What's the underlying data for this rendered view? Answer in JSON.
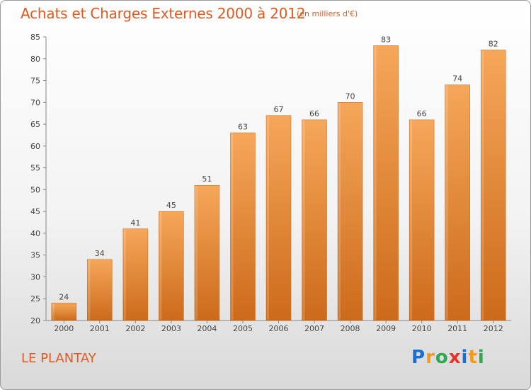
{
  "header": {
    "title": "Achats et Charges Externes 2000 à 2012",
    "subtitle": "(en milliers d'€)"
  },
  "footer": {
    "place": "LE PLANTAY",
    "brand": {
      "letters": [
        "P",
        "r",
        "o",
        "x",
        "i",
        "t",
        "i"
      ],
      "colors": [
        "#1a6fd1",
        "#f29a1d",
        "#2fa84f",
        "#e8332a",
        "#1a6fd1",
        "#f29a1d",
        "#2fa84f"
      ]
    }
  },
  "chart_data": {
    "type": "bar",
    "categories": [
      "2000",
      "2001",
      "2002",
      "2003",
      "2004",
      "2005",
      "2006",
      "2007",
      "2008",
      "2009",
      "2010",
      "2011",
      "2012"
    ],
    "values": [
      24,
      34,
      41,
      45,
      51,
      63,
      67,
      66,
      70,
      83,
      66,
      74,
      82
    ],
    "ylim": [
      20,
      85
    ],
    "yticks": [
      20,
      25,
      30,
      35,
      40,
      45,
      50,
      55,
      60,
      65,
      70,
      75,
      80,
      85
    ],
    "grid": false,
    "bar_color_top": "#f6a75a",
    "bar_color_bottom": "#cc6a1a"
  }
}
